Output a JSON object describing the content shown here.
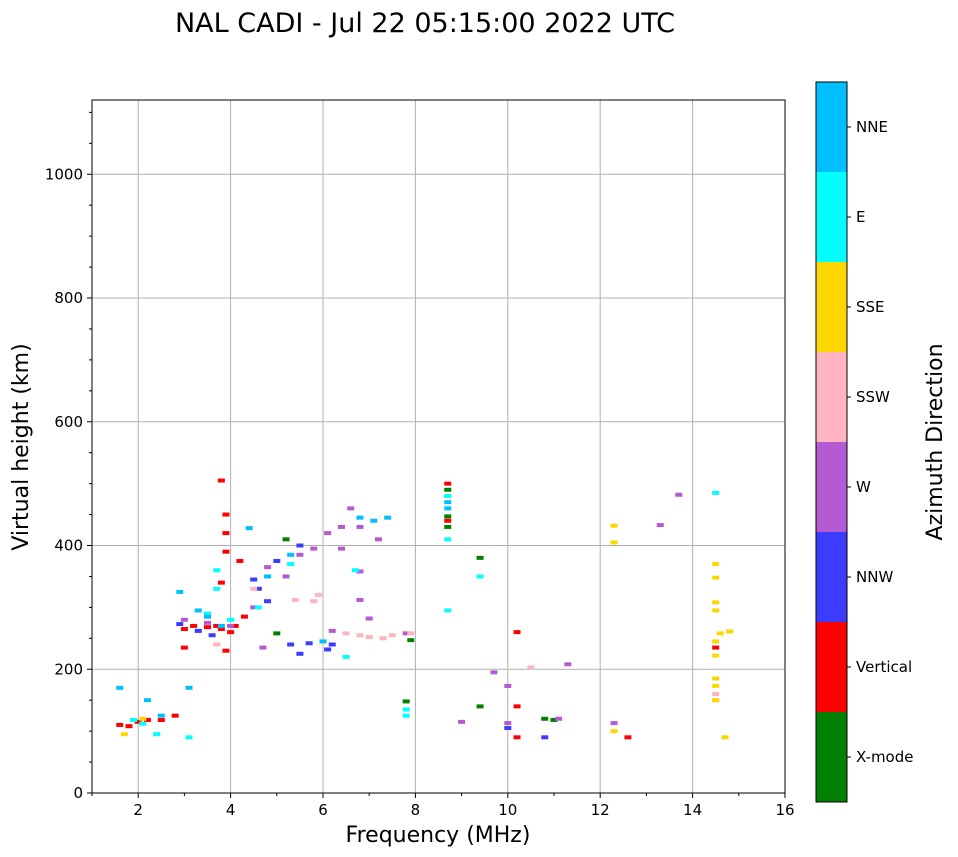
{
  "chart_data": {
    "type": "scatter",
    "title": "NAL CADI - Jul 22 05:15:00 2022 UTC",
    "xlabel": "Frequency (MHz)",
    "ylabel": "Virtual height (km)",
    "xlim": [
      1,
      16
    ],
    "ylim": [
      0,
      1120
    ],
    "xticks": [
      2,
      4,
      6,
      8,
      10,
      12,
      14,
      16
    ],
    "yticks": [
      0,
      200,
      400,
      600,
      800,
      1000
    ],
    "grid": true,
    "colorbar": {
      "label": "Azimuth Direction",
      "categories": [
        {
          "name": "X-mode",
          "color": "#008000"
        },
        {
          "name": "Vertical",
          "color": "#ff0000"
        },
        {
          "name": "NNW",
          "color": "#3c3cff"
        },
        {
          "name": "W",
          "color": "#b45ad2"
        },
        {
          "name": "SSW",
          "color": "#ffb4c0"
        },
        {
          "name": "SSE",
          "color": "#ffd700"
        },
        {
          "name": "E",
          "color": "#00ffff"
        },
        {
          "name": "NNE",
          "color": "#00bfff"
        }
      ]
    },
    "series": [
      {
        "name": "X-mode",
        "points": [
          [
            5.2,
            410
          ],
          [
            5.0,
            258
          ],
          [
            7.8,
            148
          ],
          [
            7.9,
            247
          ],
          [
            8.7,
            447
          ],
          [
            8.7,
            430
          ],
          [
            8.7,
            490
          ],
          [
            9.4,
            380
          ],
          [
            9.4,
            140
          ],
          [
            10.8,
            120
          ],
          [
            11.0,
            118
          ]
        ]
      },
      {
        "name": "Vertical",
        "points": [
          [
            1.6,
            110
          ],
          [
            1.8,
            108
          ],
          [
            2.0,
            115
          ],
          [
            2.2,
            118
          ],
          [
            2.5,
            118
          ],
          [
            2.8,
            125
          ],
          [
            3.0,
            265
          ],
          [
            3.2,
            270
          ],
          [
            3.5,
            268
          ],
          [
            3.7,
            270
          ],
          [
            3.8,
            265
          ],
          [
            4.0,
            260
          ],
          [
            3.9,
            450
          ],
          [
            3.9,
            420
          ],
          [
            3.9,
            390
          ],
          [
            4.2,
            375
          ],
          [
            3.8,
            340
          ],
          [
            3.9,
            230
          ],
          [
            3.8,
            505
          ],
          [
            3.0,
            235
          ],
          [
            4.1,
            270
          ],
          [
            4.3,
            285
          ],
          [
            8.7,
            440
          ],
          [
            8.7,
            500
          ],
          [
            10.2,
            260
          ],
          [
            10.2,
            140
          ],
          [
            10.2,
            90
          ],
          [
            12.6,
            90
          ],
          [
            14.5,
            235
          ]
        ]
      },
      {
        "name": "NNW",
        "points": [
          [
            2.9,
            273
          ],
          [
            3.3,
            262
          ],
          [
            3.6,
            255
          ],
          [
            4.5,
            345
          ],
          [
            4.8,
            310
          ],
          [
            4.6,
            330
          ],
          [
            5.0,
            375
          ],
          [
            5.3,
            240
          ],
          [
            5.5,
            225
          ],
          [
            5.7,
            242
          ],
          [
            6.2,
            240
          ],
          [
            6.1,
            232
          ],
          [
            5.5,
            400
          ],
          [
            10.0,
            105
          ],
          [
            10.8,
            90
          ]
        ]
      },
      {
        "name": "W",
        "points": [
          [
            3.0,
            280
          ],
          [
            3.5,
            275
          ],
          [
            4.0,
            270
          ],
          [
            4.5,
            300
          ],
          [
            4.8,
            365
          ],
          [
            5.2,
            350
          ],
          [
            5.5,
            385
          ],
          [
            5.8,
            395
          ],
          [
            6.1,
            420
          ],
          [
            6.4,
            430
          ],
          [
            6.6,
            460
          ],
          [
            6.8,
            430
          ],
          [
            6.4,
            395
          ],
          [
            6.8,
            358
          ],
          [
            7.2,
            410
          ],
          [
            6.8,
            312
          ],
          [
            7.0,
            282
          ],
          [
            7.8,
            258
          ],
          [
            6.2,
            262
          ],
          [
            4.7,
            235
          ],
          [
            9.0,
            115
          ],
          [
            9.7,
            195
          ],
          [
            10.0,
            173
          ],
          [
            10.0,
            113
          ],
          [
            11.3,
            208
          ],
          [
            11.1,
            120
          ],
          [
            12.3,
            113
          ],
          [
            13.3,
            433
          ],
          [
            13.7,
            482
          ]
        ]
      },
      {
        "name": "SSW",
        "points": [
          [
            3.7,
            240
          ],
          [
            4.5,
            330
          ],
          [
            5.4,
            312
          ],
          [
            5.8,
            310
          ],
          [
            5.9,
            320
          ],
          [
            6.5,
            258
          ],
          [
            6.8,
            255
          ],
          [
            7.0,
            252
          ],
          [
            7.3,
            250
          ],
          [
            7.5,
            255
          ],
          [
            7.9,
            258
          ],
          [
            10.5,
            203
          ],
          [
            14.5,
            150
          ],
          [
            14.5,
            160
          ]
        ]
      },
      {
        "name": "SSE",
        "points": [
          [
            1.7,
            95
          ],
          [
            2.1,
            120
          ],
          [
            12.3,
            432
          ],
          [
            12.3,
            405
          ],
          [
            12.3,
            100
          ],
          [
            14.5,
            370
          ],
          [
            14.5,
            348
          ],
          [
            14.5,
            308
          ],
          [
            14.5,
            295
          ],
          [
            14.6,
            258
          ],
          [
            14.8,
            261
          ],
          [
            14.5,
            245
          ],
          [
            14.5,
            222
          ],
          [
            14.5,
            185
          ],
          [
            14.5,
            173
          ],
          [
            14.5,
            150
          ],
          [
            14.7,
            90
          ]
        ]
      },
      {
        "name": "E",
        "points": [
          [
            1.9,
            118
          ],
          [
            2.1,
            112
          ],
          [
            2.4,
            95
          ],
          [
            3.1,
            90
          ],
          [
            3.5,
            290
          ],
          [
            3.7,
            360
          ],
          [
            3.7,
            330
          ],
          [
            4.0,
            280
          ],
          [
            4.6,
            300
          ],
          [
            5.3,
            370
          ],
          [
            6.7,
            360
          ],
          [
            6.5,
            220
          ],
          [
            8.7,
            295
          ],
          [
            8.7,
            410
          ],
          [
            8.7,
            480
          ],
          [
            7.8,
            125
          ],
          [
            7.8,
            135
          ],
          [
            9.4,
            350
          ],
          [
            14.5,
            485
          ]
        ]
      },
      {
        "name": "NNE",
        "points": [
          [
            1.6,
            170
          ],
          [
            2.2,
            150
          ],
          [
            2.5,
            125
          ],
          [
            3.1,
            170
          ],
          [
            2.9,
            325
          ],
          [
            3.3,
            295
          ],
          [
            3.5,
            285
          ],
          [
            3.8,
            270
          ],
          [
            4.4,
            428
          ],
          [
            5.3,
            385
          ],
          [
            6.8,
            445
          ],
          [
            7.1,
            440
          ],
          [
            7.4,
            445
          ],
          [
            4.8,
            350
          ],
          [
            6.0,
            245
          ],
          [
            8.7,
            470
          ],
          [
            8.7,
            460
          ]
        ]
      }
    ]
  }
}
